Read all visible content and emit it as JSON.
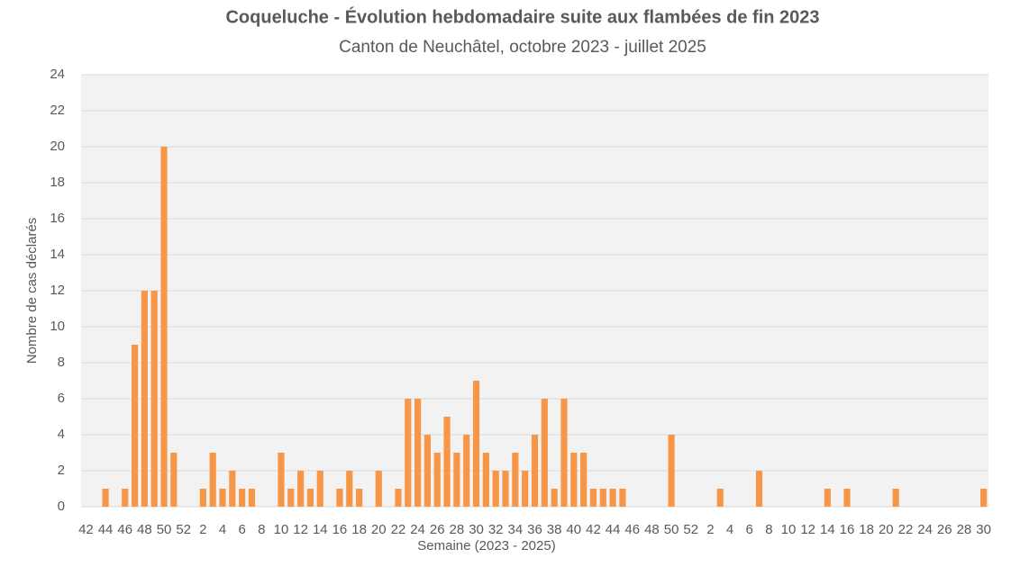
{
  "chart_data": {
    "type": "bar",
    "title": "Coqueluche - Évolution hebdomadaire suite aux flambées de fin 2023",
    "subtitle": "Canton de Neuchâtel, octobre 2023 - juillet 2025",
    "x_label": "Semaine (2023 - 2025)",
    "y_label": "Nombre de cas déclarés",
    "color": "#f79646",
    "grid": true,
    "ylim": [
      0,
      24
    ],
    "yticks": [
      0,
      2,
      4,
      6,
      8,
      10,
      12,
      14,
      16,
      18,
      20,
      22,
      24
    ],
    "categories": [
      "42",
      null,
      "44",
      null,
      "46",
      null,
      "48",
      null,
      "50",
      null,
      "52",
      null,
      "2",
      null,
      "4",
      null,
      "6",
      null,
      "8",
      null,
      "10",
      null,
      "12",
      null,
      "14",
      null,
      "16",
      null,
      "18",
      null,
      "20",
      null,
      "22",
      null,
      "24",
      null,
      "26",
      null,
      "28",
      null,
      "30",
      null,
      "32",
      null,
      "34",
      null,
      "36",
      null,
      "38",
      null,
      "40",
      null,
      "42",
      null,
      "44",
      null,
      "46",
      null,
      "48",
      null,
      "50",
      null,
      "52",
      null,
      "2",
      null,
      "4",
      null,
      "6",
      null,
      "8",
      null,
      "10",
      null,
      "12",
      null,
      "14",
      null,
      "16",
      null,
      "18",
      null,
      "20",
      null,
      "22",
      null,
      "24",
      null,
      "26",
      null,
      "28",
      null,
      "30"
    ],
    "values": [
      0,
      0,
      1,
      0,
      1,
      9,
      12,
      12,
      20,
      3,
      0,
      0,
      1,
      3,
      1,
      2,
      1,
      1,
      0,
      0,
      3,
      1,
      2,
      1,
      2,
      0,
      1,
      2,
      1,
      0,
      2,
      0,
      1,
      6,
      6,
      4,
      3,
      5,
      3,
      4,
      7,
      3,
      2,
      2,
      3,
      2,
      4,
      6,
      1,
      6,
      3,
      3,
      1,
      1,
      1,
      1,
      0,
      0,
      0,
      0,
      4,
      0,
      0,
      0,
      0,
      1,
      0,
      0,
      0,
      2,
      0,
      0,
      0,
      0,
      0,
      0,
      1,
      0,
      1,
      0,
      0,
      0,
      0,
      1,
      0,
      0,
      0,
      0,
      0,
      0,
      0,
      0,
      1
    ]
  }
}
